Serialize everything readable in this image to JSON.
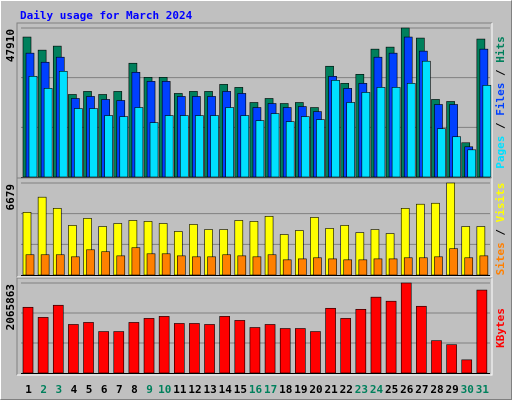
{
  "chart_data": [
    {
      "type": "bar",
      "title": "Daily usage for March 2024",
      "series": [
        {
          "name": "Hits",
          "color": "#00805c",
          "values": [
            45000,
            40790,
            42080,
            26540,
            27520,
            26540,
            27520,
            36580,
            32050,
            32050,
            26870,
            27520,
            27520,
            29780,
            28810,
            23960,
            25250,
            23630,
            23960,
            22340,
            35610,
            30110,
            33020,
            41110,
            41760,
            47910,
            44670,
            24930,
            24280,
            11010,
            44350
          ]
        },
        {
          "name": "Files",
          "color": "#0040ff",
          "values": [
            39820,
            36900,
            38520,
            25250,
            25900,
            24930,
            24600,
            33670,
            30750,
            30750,
            25900,
            25900,
            25900,
            27520,
            26870,
            22340,
            23630,
            22340,
            22660,
            21040,
            32370,
            28490,
            30110,
            38520,
            39820,
            45000,
            40470,
            23310,
            23310,
            9710,
            41110
          ]
        },
        {
          "name": "Pages",
          "color": "#00e0ff",
          "values": [
            32370,
            28490,
            33990,
            22010,
            22010,
            19750,
            19420,
            22340,
            17480,
            19750,
            19750,
            19750,
            19750,
            22340,
            19750,
            18130,
            20390,
            17800,
            19420,
            18450,
            31080,
            23960,
            27190,
            28810,
            28810,
            30110,
            37230,
            15540,
            12950,
            8740,
            29460
          ]
        }
      ],
      "ylim": [
        0,
        47910
      ],
      "yticks": [
        47910
      ],
      "grid_divisions": 3,
      "legend_separator": "/"
    },
    {
      "type": "bar",
      "series": [
        {
          "name": "Visits",
          "color": "#ffff00",
          "values": [
            4550,
            5650,
            4840,
            3600,
            4110,
            3520,
            3740,
            3960,
            3890,
            3740,
            3160,
            3670,
            3300,
            3300,
            3960,
            3890,
            4260,
            2940,
            3230,
            4180,
            3380,
            3600,
            3080,
            3300,
            3010,
            4840,
            5140,
            5210,
            6679,
            3520,
            3520
          ]
        },
        {
          "name": "Sites",
          "color": "#ff8000",
          "values": [
            1470,
            1470,
            1470,
            1320,
            1830,
            1690,
            1390,
            1980,
            1540,
            1540,
            1390,
            1320,
            1320,
            1470,
            1390,
            1320,
            1470,
            1100,
            1170,
            1250,
            1170,
            1100,
            1100,
            1170,
            1170,
            1250,
            1250,
            1320,
            1910,
            1250,
            1390
          ]
        }
      ],
      "ylim": [
        0,
        6679
      ],
      "yticks": [
        6679
      ],
      "grid_divisions": 3,
      "legend_separator": "/"
    },
    {
      "type": "bar",
      "categories": [
        "1",
        "2",
        "3",
        "4",
        "5",
        "6",
        "7",
        "8",
        "9",
        "10",
        "11",
        "12",
        "13",
        "14",
        "15",
        "16",
        "17",
        "18",
        "19",
        "20",
        "21",
        "22",
        "23",
        "24",
        "25",
        "26",
        "27",
        "28",
        "29",
        "30",
        "31"
      ],
      "category_colors": [
        "#000000",
        "#00805c",
        "#00805c",
        "#000000",
        "#000000",
        "#000000",
        "#000000",
        "#000000",
        "#00805c",
        "#00805c",
        "#000000",
        "#000000",
        "#000000",
        "#000000",
        "#000000",
        "#00805c",
        "#00805c",
        "#000000",
        "#000000",
        "#000000",
        "#000000",
        "#000000",
        "#00805c",
        "#00805c",
        "#000000",
        "#000000",
        "#000000",
        "#000000",
        "#000000",
        "#00805c",
        "#00805c"
      ],
      "series": [
        {
          "name": "KBytes",
          "color": "#ff0000",
          "values": [
            1508800,
            1276700,
            1555200,
            1114200,
            1160600,
            951700,
            951700,
            1160600,
            1253400,
            1299900,
            1137400,
            1137400,
            1114200,
            1299900,
            1207000,
            1044500,
            1114200,
            1021300,
            1021300,
            951700,
            1485600,
            1253400,
            1462400,
            1740900,
            1648000,
            2065863,
            1532000,
            742800,
            649900,
            301800,
            1903400
          ]
        }
      ],
      "ylim": [
        0,
        2065863
      ],
      "yticks": [
        2065863
      ],
      "grid_divisions": 3
    }
  ]
}
